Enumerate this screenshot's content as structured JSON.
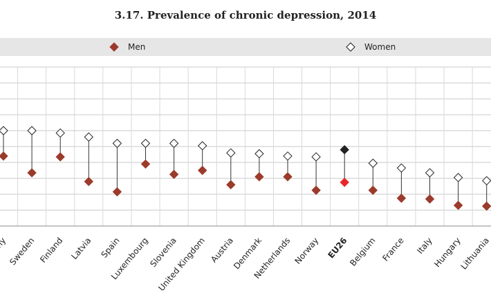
{
  "chart_data": {
    "type": "dot",
    "title": "3.17. Prevalence of chronic depression, 2014",
    "categories": [
      "Germany",
      "Sweden",
      "Finland",
      "Latvia",
      "Spain",
      "Luxembourg",
      "Slovenia",
      "United Kingdom",
      "Austria",
      "Denmark",
      "Netherlands",
      "Norway",
      "EU26",
      "Belgium",
      "France",
      "Italy",
      "Hungary",
      "Lithuania"
    ],
    "series": [
      {
        "name": "Men",
        "color": "#9b3b2b",
        "highlight_color": "#e8262a",
        "marker": "filled",
        "values": [
          8.8,
          6.7,
          8.7,
          5.6,
          4.3,
          7.8,
          6.5,
          7.0,
          5.2,
          6.2,
          6.2,
          4.5,
          5.5,
          4.5,
          3.5,
          3.4,
          2.6,
          2.5
        ]
      },
      {
        "name": "Women",
        "color": "#ffffff",
        "highlight_color": "#222222",
        "marker": "open",
        "values": [
          12.0,
          12.0,
          11.7,
          11.2,
          10.4,
          10.4,
          10.4,
          10.1,
          9.2,
          9.1,
          8.8,
          8.7,
          9.6,
          7.9,
          7.3,
          6.7,
          6.1,
          5.7
        ]
      }
    ],
    "highlight": 12,
    "ylim": [
      0,
      20
    ],
    "yticks": [
      0,
      2,
      4,
      6,
      8,
      10,
      12,
      14,
      16,
      18,
      20
    ],
    "grid": true
  }
}
